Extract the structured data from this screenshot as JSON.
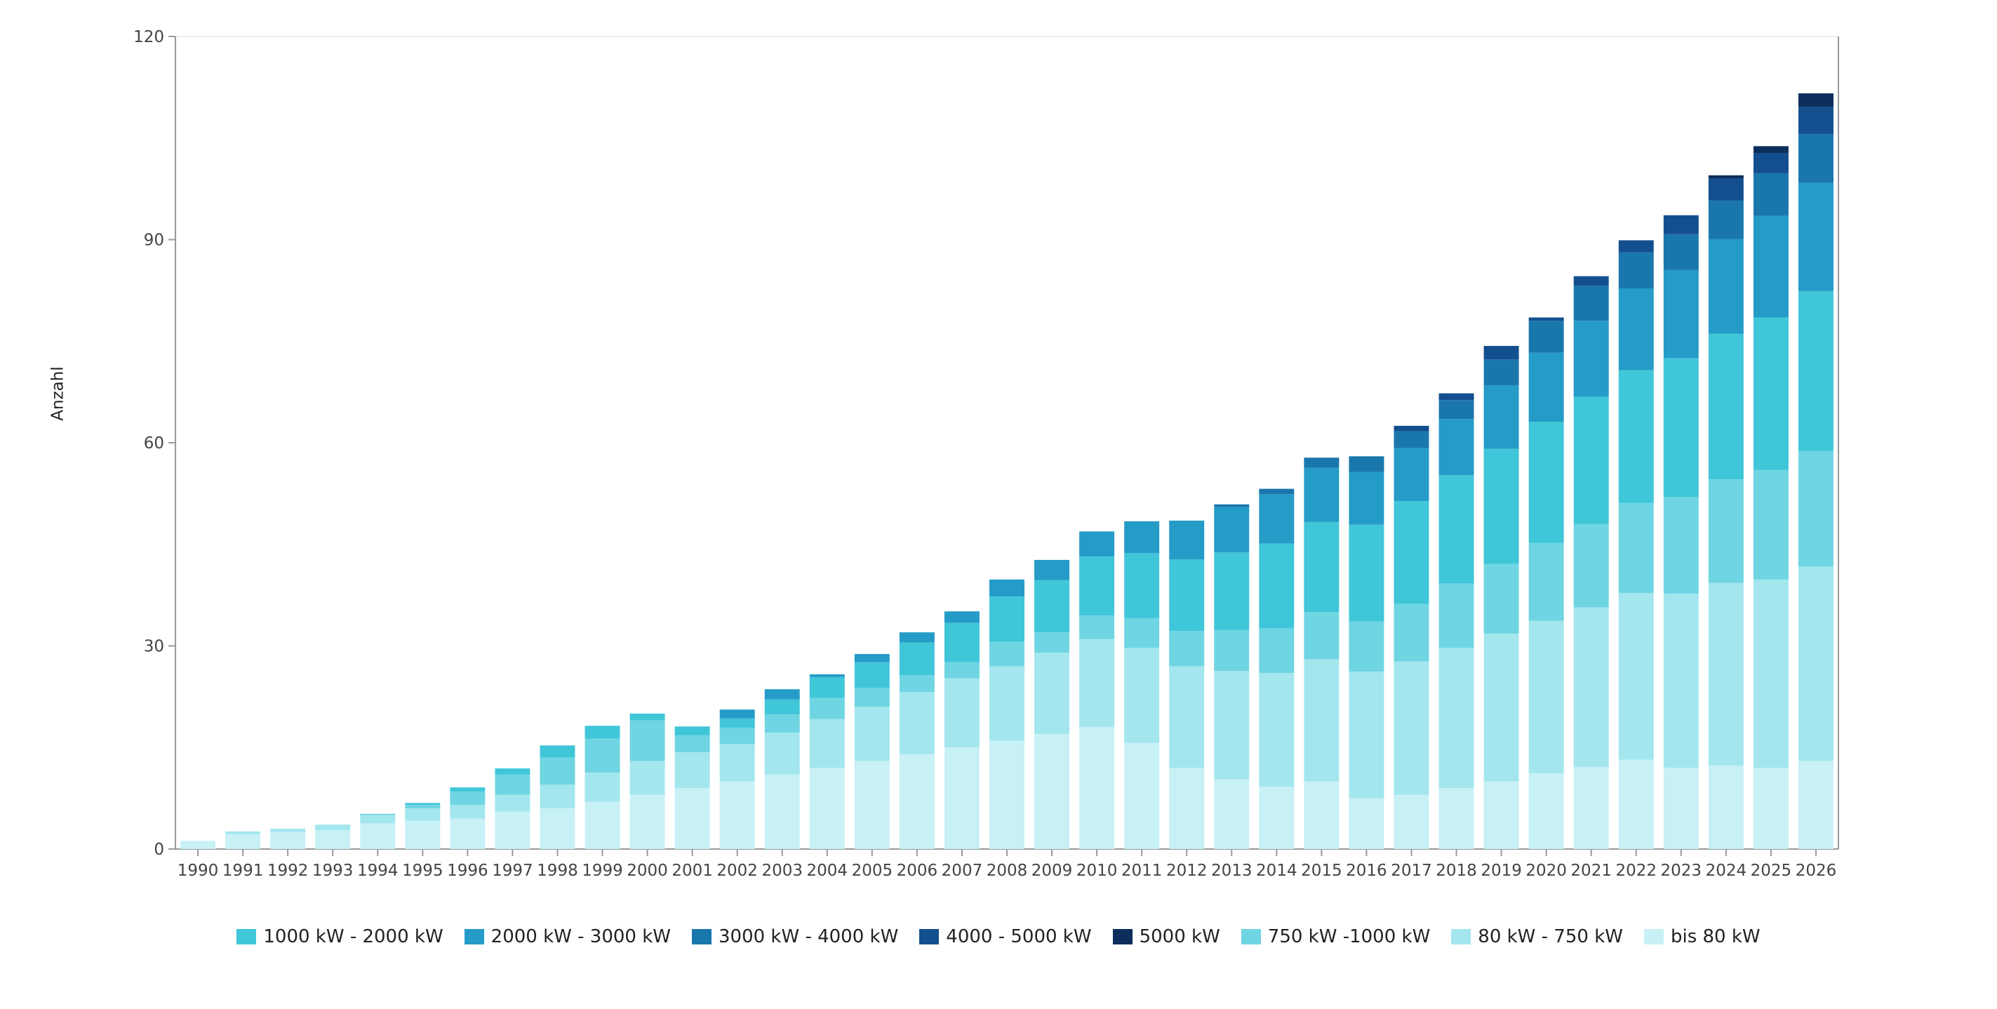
{
  "chart_data": {
    "type": "bar",
    "stacked": true,
    "title": "",
    "xlabel": "",
    "ylabel": "Anzahl",
    "ylim": [
      0,
      120
    ],
    "yticks": [
      0,
      30,
      60,
      90,
      120
    ],
    "legend_position": "bottom",
    "categories": [
      "1990",
      "1991",
      "1992",
      "1993",
      "1994",
      "1995",
      "1996",
      "1997",
      "1998",
      "1999",
      "2000",
      "2001",
      "2002",
      "2003",
      "2004",
      "2005",
      "2006",
      "2007",
      "2008",
      "2009",
      "2010",
      "2011",
      "2012",
      "2013",
      "2014",
      "2015",
      "2016",
      "2017",
      "2018",
      "2019",
      "2020",
      "2021",
      "2022",
      "2023",
      "2024",
      "2025",
      "2026"
    ],
    "series": [
      {
        "name": "bis 80 kW",
        "color": "#c8f1f6",
        "values": [
          1.2,
          2.2,
          2.5,
          2.8,
          3.8,
          4.2,
          4.5,
          5.5,
          6,
          7,
          8,
          9,
          10,
          11,
          12,
          13,
          14,
          15,
          16,
          17,
          18,
          15.7,
          12,
          10.3,
          9.2,
          10,
          7.5,
          8,
          9,
          10,
          11.2,
          12.1,
          13.2,
          12,
          12.3,
          12,
          13
        ]
      },
      {
        "name": "80 kW - 750 kW",
        "color": "#a3e6ee",
        "values": [
          0,
          0.4,
          0.5,
          0.8,
          1.2,
          1.8,
          2,
          2.5,
          3.5,
          4.3,
          5,
          5.3,
          5.5,
          6.2,
          7.2,
          8,
          9.2,
          10.2,
          11,
          12,
          13,
          14,
          15,
          16,
          16.8,
          18,
          18.7,
          19.7,
          20.7,
          21.8,
          22.5,
          23.6,
          24.6,
          25.7,
          27,
          27.8,
          28.7
        ]
      },
      {
        "name": "750 kW -1000 kW",
        "color": "#6fd5e2",
        "values": [
          0,
          0,
          0,
          0,
          0.2,
          0.5,
          2,
          3,
          4,
          5,
          6,
          2.5,
          2.4,
          2.7,
          3.1,
          2.8,
          2.5,
          2.4,
          3.6,
          3,
          3.5,
          4.4,
          5.2,
          6,
          6.6,
          7,
          7.4,
          8.5,
          9.5,
          10.3,
          11.5,
          12.3,
          13.3,
          14.3,
          15.3,
          16.2,
          17.1
        ]
      },
      {
        "name": "1000 kW - 2000 kW",
        "color": "#3fc6d8",
        "values": [
          0,
          0,
          0,
          0,
          0,
          0.3,
          0.6,
          0.9,
          1.8,
          1.9,
          1,
          1.3,
          1.4,
          2.2,
          3.1,
          3.8,
          4.8,
          5.8,
          6.7,
          7.7,
          8.7,
          9.6,
          10.6,
          11.5,
          12.5,
          13.3,
          14.3,
          15.2,
          16,
          17,
          17.9,
          18.8,
          19.6,
          20.5,
          21.5,
          22.5,
          23.6
        ]
      },
      {
        "name": "2000 kW - 3000 kW",
        "color": "#259bc8",
        "values": [
          0,
          0,
          0,
          0,
          0,
          0,
          0,
          0,
          0,
          0,
          0,
          0,
          1.3,
          1.5,
          0.4,
          1.2,
          1.5,
          1.7,
          2.5,
          3,
          3.7,
          4.7,
          5.7,
          6.7,
          7.3,
          8,
          7.8,
          7.8,
          8.3,
          9.4,
          10.2,
          11.2,
          12.1,
          13,
          14,
          15,
          16
        ]
      },
      {
        "name": "3000 kW - 4000 kW",
        "color": "#1a77ac",
        "values": [
          0,
          0,
          0,
          0,
          0,
          0,
          0,
          0,
          0,
          0,
          0,
          0,
          0,
          0,
          0,
          0,
          0,
          0,
          0,
          0,
          0,
          0,
          0,
          0.4,
          0.8,
          1.5,
          2.3,
          2.5,
          2.8,
          3.8,
          4.7,
          5.2,
          5.3,
          5.3,
          5.7,
          6.3,
          7.2
        ]
      },
      {
        "name": "4000 - 5000 kW",
        "color": "#134f8e",
        "values": [
          0,
          0,
          0,
          0,
          0,
          0,
          0,
          0,
          0,
          0,
          0,
          0,
          0,
          0,
          0,
          0,
          0,
          0,
          0,
          0,
          0,
          0,
          0,
          0,
          0,
          0,
          0,
          0.8,
          1,
          2,
          0.5,
          1.4,
          1.8,
          2.8,
          3.2,
          3,
          4
        ]
      },
      {
        "name": "5000 kW",
        "color": "#0b2e5c",
        "values": [
          0,
          0,
          0,
          0,
          0,
          0,
          0,
          0,
          0,
          0,
          0,
          0,
          0,
          0,
          0,
          0,
          0,
          0,
          0,
          0,
          0,
          0,
          0,
          0,
          0,
          0,
          0,
          0,
          0,
          0,
          0,
          0,
          0,
          0,
          0.5,
          1,
          2
        ]
      }
    ],
    "legend_order": [
      "1000 kW - 2000 kW",
      "2000 kW - 3000 kW",
      "3000 kW - 4000 kW",
      "4000 - 5000 kW",
      "5000 kW",
      "750 kW -1000 kW",
      "80 kW - 750 kW",
      "bis 80 kW"
    ]
  }
}
